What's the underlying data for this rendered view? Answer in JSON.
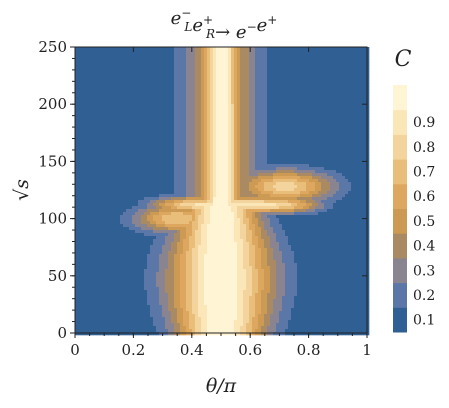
{
  "chart_data": {
    "type": "heatmap",
    "subtype": "contour",
    "title": "e⁻ₗe⁺ᵣ→ e⁻e⁺",
    "title_parts": [
      {
        "text": "e",
        "sup": "−",
        "sub": "L"
      },
      {
        "text": "e",
        "sup": "+",
        "sub": "R"
      },
      {
        "text": "→ e",
        "sup": "−"
      },
      {
        "text": "e",
        "sup": "+"
      }
    ],
    "xlabel": "θ/π",
    "ylabel": "√s",
    "xlim": [
      0,
      1
    ],
    "ylim": [
      0,
      250
    ],
    "xticks": [
      0,
      0.2,
      0.4,
      0.6,
      0.8,
      1
    ],
    "xtick_labels": [
      "0",
      "0.2",
      "0.4",
      "0.6",
      "0.8",
      "1"
    ],
    "yticks": [
      0,
      50,
      100,
      150,
      200,
      250
    ],
    "ytick_labels": [
      "0",
      "50",
      "100",
      "150",
      "200",
      "250"
    ],
    "legend": {
      "title": "C",
      "placement": "right",
      "levels": [
        0.1,
        0.2,
        0.3,
        0.4,
        0.5,
        0.6,
        0.7,
        0.8,
        0.9
      ],
      "labels": [
        "0.1",
        "0.2",
        "0.3",
        "0.4",
        "0.5",
        "0.6",
        "0.7",
        "0.8",
        "0.9"
      ],
      "colors": [
        "#2f5f93",
        "#5a77a8",
        "#8a8490",
        "#a98a62",
        "#cc9a52",
        "#dea75f",
        "#e9bd7a",
        "#f4d49d",
        "#fbe6b8",
        "#fff4d4"
      ]
    },
    "grid": false
  }
}
